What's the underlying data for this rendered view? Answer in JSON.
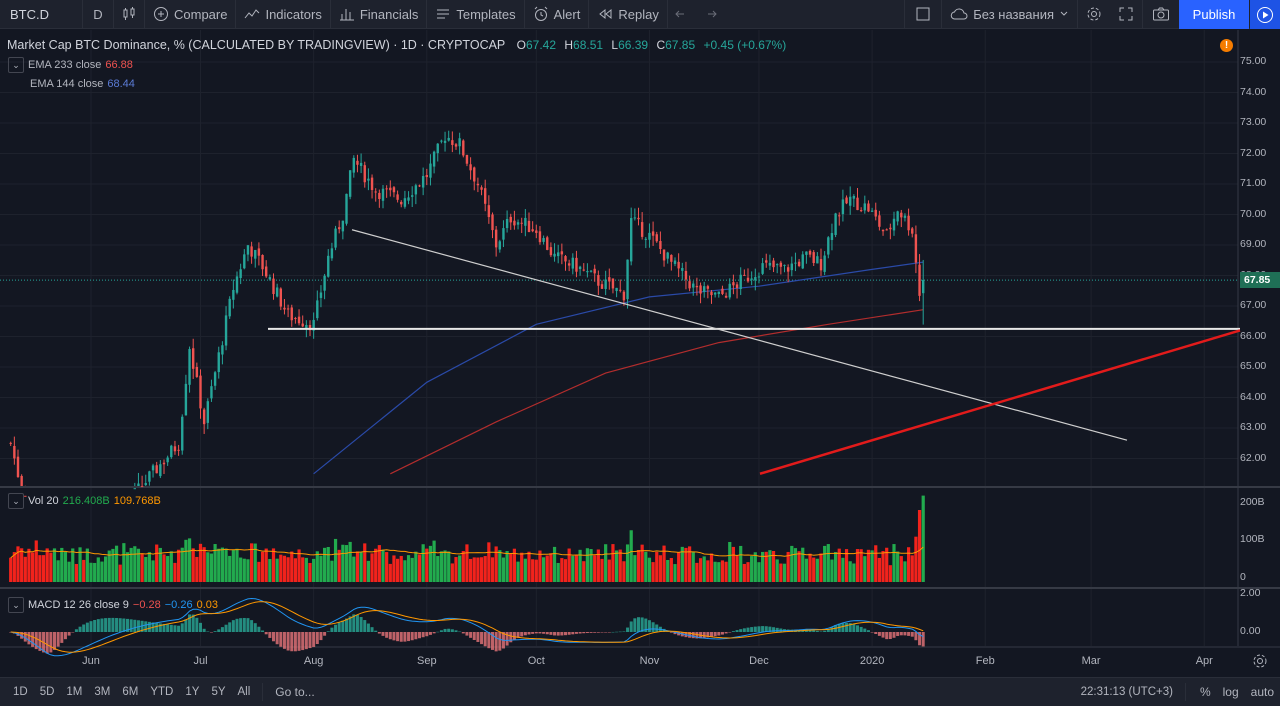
{
  "toolbar": {
    "symbol": "BTC.D",
    "interval": "D",
    "compare": "Compare",
    "indicators": "Indicators",
    "financials": "Financials",
    "templates": "Templates",
    "alert": "Alert",
    "replay": "Replay",
    "layout_name": "Без названия",
    "publish": "Publish"
  },
  "legend": {
    "title": "Market Cap BTC Dominance, % (CALCULATED BY TRADINGVIEW) · 1D · CRYPTOCAP",
    "o_label": "O",
    "o_val": "67.42",
    "h_label": "H",
    "h_val": "68.51",
    "l_label": "L",
    "l_val": "66.39",
    "c_label": "C",
    "c_val": "67.85",
    "change": "+0.45 (+0.67%)",
    "ema233_label": "EMA 233 close",
    "ema233_val": "66.88",
    "ema144_label": "EMA 144 close",
    "ema144_val": "68.44",
    "vol_label": "Vol 20",
    "vol_val1": "216.408B",
    "vol_val2": "109.768B",
    "macd_label": "MACD 12 26 close 9",
    "macd_v1": "−0.28",
    "macd_v2": "−0.26",
    "macd_v3": "0.03"
  },
  "price_axis": [
    "75.00",
    "74.00",
    "73.00",
    "72.00",
    "71.00",
    "70.00",
    "69.00",
    "68.00",
    "67.00",
    "66.00",
    "65.00",
    "64.00",
    "63.00",
    "62.00"
  ],
  "current_price": "67.85",
  "vol_axis": [
    "200B",
    "100B",
    "0"
  ],
  "macd_axis": [
    "2.00",
    "0.00"
  ],
  "time_axis": [
    "Jun",
    "Jul",
    "Aug",
    "Sep",
    "Oct",
    "Nov",
    "Dec",
    "2020",
    "Feb",
    "Mar",
    "Apr"
  ],
  "bottom": {
    "ranges": [
      "1D",
      "5D",
      "1M",
      "3M",
      "6M",
      "YTD",
      "1Y",
      "5Y",
      "All"
    ],
    "goto": "Go to...",
    "clock": "22:31:13 (UTC+3)",
    "percent": "%",
    "log": "log",
    "auto": "auto"
  },
  "colors": {
    "up": "#26a69a",
    "down": "#ef5350",
    "ema233": "#e53935",
    "ema144": "#2962ff",
    "vol_up": "#22ab4e",
    "vol_down": "#f2231c",
    "accent": "#2962ff"
  },
  "chart_data": {
    "type": "candlestick",
    "ylim": [
      61.5,
      75.5
    ],
    "x": [
      "Jun",
      "Jul",
      "Aug",
      "Sep",
      "Oct",
      "Nov",
      "Dec",
      "2020",
      "Feb",
      "Mar",
      "Apr"
    ],
    "close_path": [
      [
        "2019-05-10",
        62.5
      ],
      [
        "2019-05-20",
        57.5
      ],
      [
        "2019-06-25",
        62.5
      ],
      [
        "2019-06-28",
        65.7
      ],
      [
        "2019-07-02",
        63.2
      ],
      [
        "2019-07-05",
        64.8
      ],
      [
        "2019-07-10",
        67.6
      ],
      [
        "2019-07-14",
        69.0
      ],
      [
        "2019-07-18",
        68.3
      ],
      [
        "2019-07-25",
        66.7
      ],
      [
        "2019-08-01",
        66.4
      ],
      [
        "2019-08-05",
        68.6
      ],
      [
        "2019-08-09",
        70.0
      ],
      [
        "2019-08-12",
        71.8
      ],
      [
        "2019-08-18",
        70.8
      ],
      [
        "2019-08-25",
        70.5
      ],
      [
        "2019-09-01",
        71.3
      ],
      [
        "2019-09-06",
        72.6
      ],
      [
        "2019-09-10",
        72.3
      ],
      [
        "2019-09-15",
        71.0
      ],
      [
        "2019-09-20",
        69.0
      ],
      [
        "2019-09-24",
        69.9
      ],
      [
        "2019-10-01",
        69.5
      ],
      [
        "2019-10-06",
        68.6
      ],
      [
        "2019-10-12",
        68.3
      ],
      [
        "2019-10-18",
        67.8
      ],
      [
        "2019-10-25",
        67.4
      ],
      [
        "2019-10-27",
        69.8
      ],
      [
        "2019-11-01",
        69.3
      ],
      [
        "2019-11-07",
        68.4
      ],
      [
        "2019-11-14",
        67.5
      ],
      [
        "2019-11-20",
        67.3
      ],
      [
        "2019-11-26",
        67.8
      ],
      [
        "2019-12-02",
        68.3
      ],
      [
        "2019-12-08",
        68.2
      ],
      [
        "2019-12-14",
        68.6
      ],
      [
        "2019-12-18",
        68.4
      ],
      [
        "2019-12-22",
        70.0
      ],
      [
        "2019-12-26",
        70.5
      ],
      [
        "2019-12-31",
        70.2
      ],
      [
        "2020-01-05",
        69.3
      ],
      [
        "2020-01-08",
        70.2
      ],
      [
        "2020-01-12",
        69.5
      ],
      [
        "2020-01-14",
        67.4
      ],
      [
        "2020-01-15",
        67.85
      ]
    ],
    "ema144": [
      [
        "2019-08-01",
        61.5
      ],
      [
        "2019-09-01",
        64.5
      ],
      [
        "2019-10-01",
        66.4
      ],
      [
        "2019-11-01",
        67.3
      ],
      [
        "2019-12-01",
        67.65
      ],
      [
        "2020-01-01",
        68.2
      ],
      [
        "2020-01-15",
        68.44
      ]
    ],
    "ema233": [
      [
        "2019-08-22",
        61.5
      ],
      [
        "2019-09-20",
        63.2
      ],
      [
        "2019-10-20",
        64.8
      ],
      [
        "2019-11-20",
        65.8
      ],
      [
        "2019-12-20",
        66.4
      ],
      [
        "2020-01-15",
        66.88
      ]
    ],
    "volume_peak": "216.408B",
    "volume_ma": "109.768B"
  }
}
